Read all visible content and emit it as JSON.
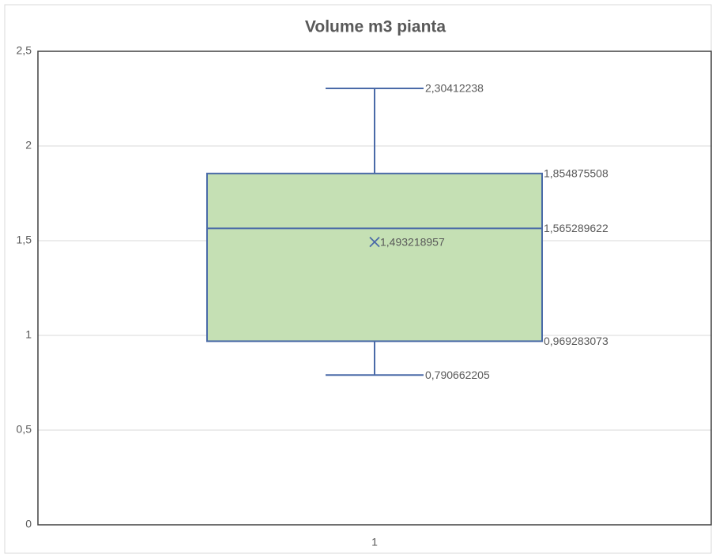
{
  "chart_data": {
    "type": "box",
    "title": "Volume m3 pianta",
    "categories": [
      "1"
    ],
    "min": [
      0.790662205
    ],
    "q1": [
      0.969283073
    ],
    "median": [
      1.565289622
    ],
    "q3": [
      1.854875508
    ],
    "max": [
      2.30412238
    ],
    "mean": [
      1.493218957
    ],
    "value_labels": {
      "min": [
        "0,790662205"
      ],
      "q1": [
        "0,969283073"
      ],
      "median": [
        "1,565289622"
      ],
      "q3": [
        "1,854875508"
      ],
      "max": [
        "2,30412238"
      ],
      "mean": [
        "1,493218957"
      ]
    },
    "color": "#c5e0b4",
    "line_color": "#4a6aa8",
    "ylim": [
      0,
      2.5
    ],
    "yticks": [
      0,
      {
        "value": 0.5,
        "label": "0,5"
      },
      1,
      {
        "value": 1.5,
        "label": "1,5"
      },
      2,
      {
        "value": 2.5,
        "label": "2,5"
      }
    ],
    "grid": true
  }
}
